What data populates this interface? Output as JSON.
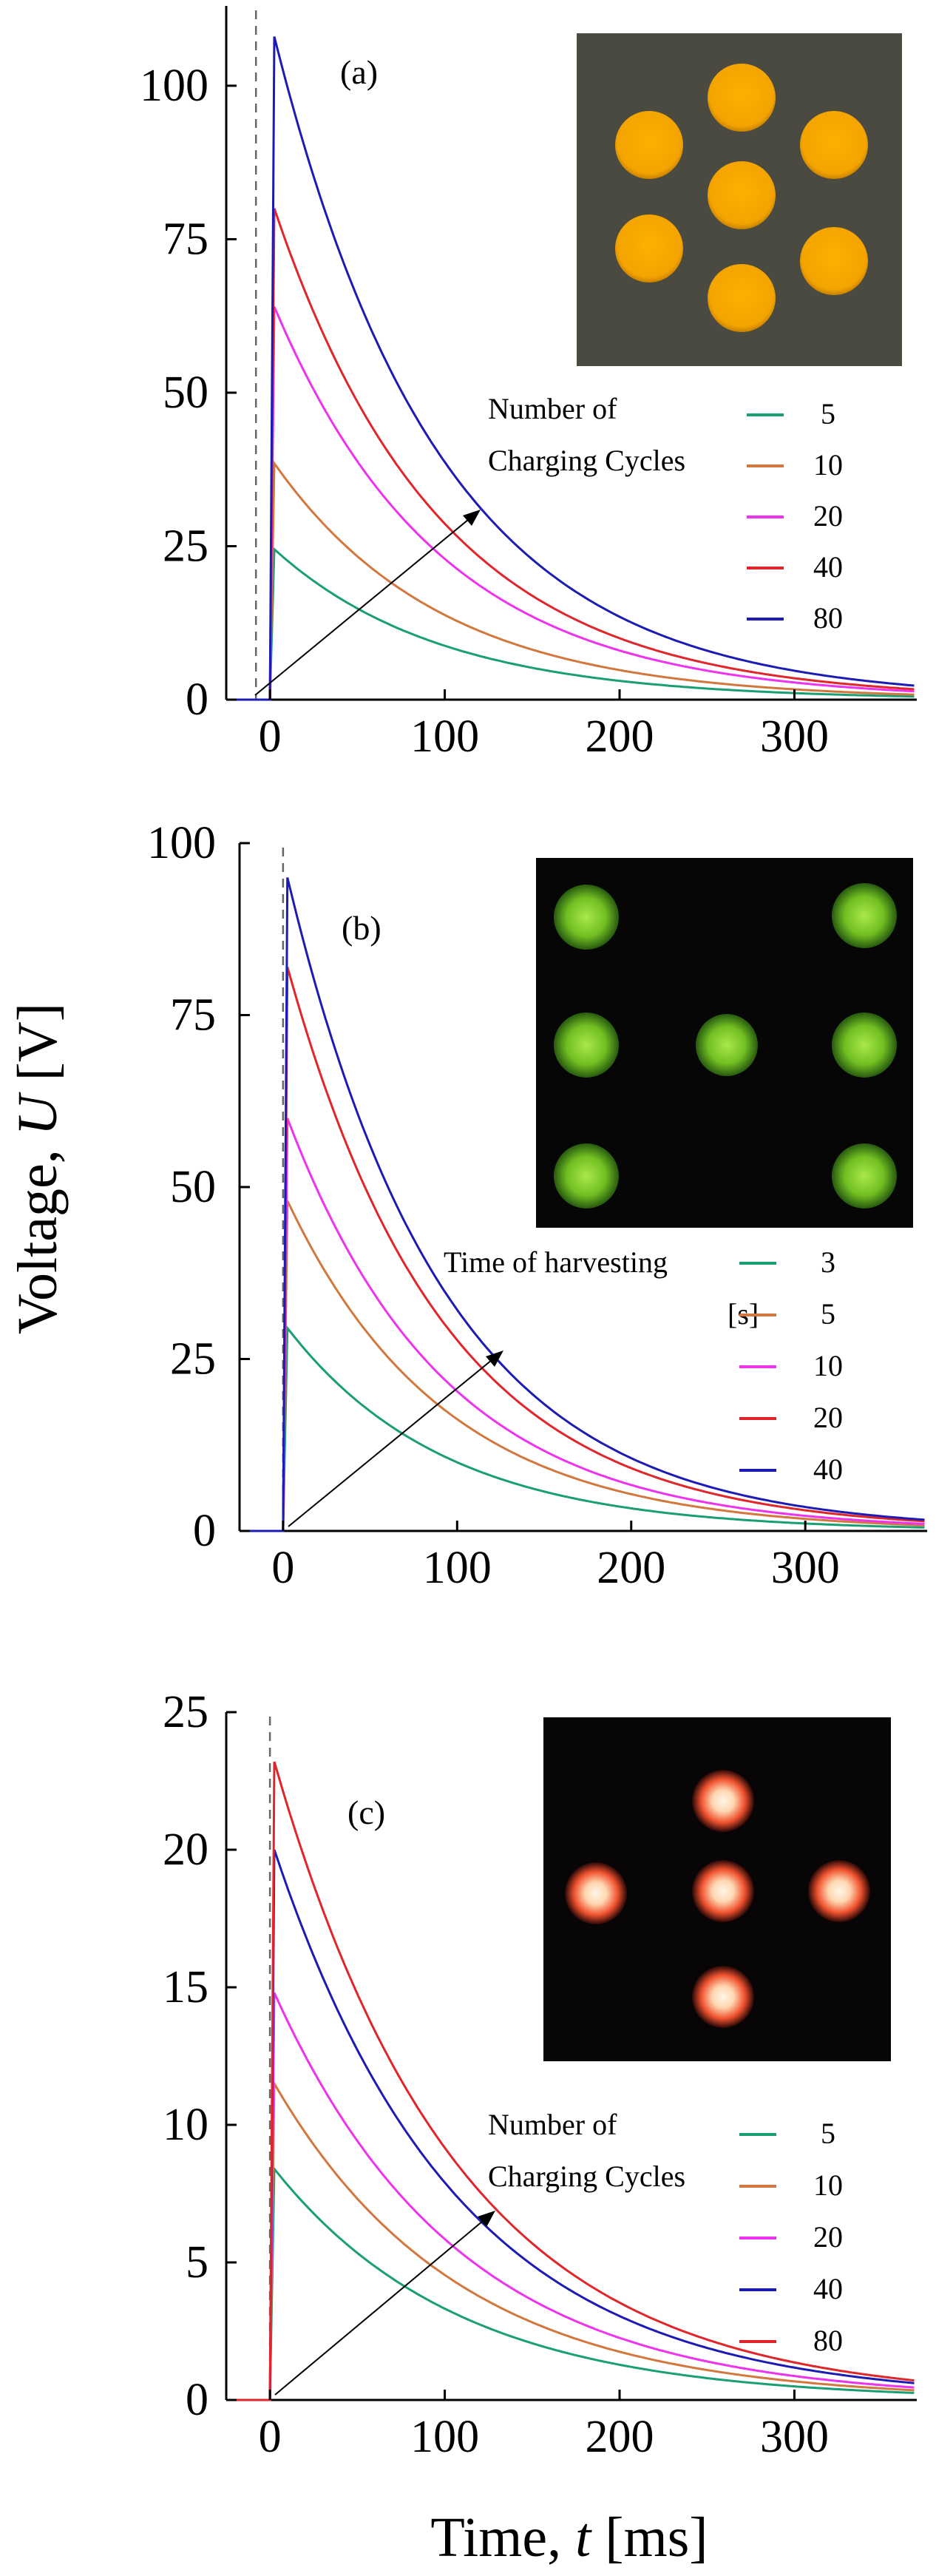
{
  "figure": {
    "ylabel_main": "Voltage, ",
    "ylabel_var": "U",
    "ylabel_unit": " [V]",
    "xlabel_main": "Time, ",
    "xlabel_var": "t",
    "xlabel_unit": " [ms]"
  },
  "chart_data": [
    {
      "type": "line",
      "panel_label": "(a)",
      "xlabel": "Time, t [ms]",
      "ylabel": "Voltage, U [V]",
      "xlim": [
        -25,
        370
      ],
      "ylim": [
        0,
        113
      ],
      "xticks": [
        0,
        100,
        200,
        300
      ],
      "yticks": [
        0,
        25,
        50,
        75,
        100
      ],
      "legend_title": [
        "Number of",
        "Charging Cycles"
      ],
      "dashed_line_x": -8,
      "pulse_start": 0,
      "decay_tau_ms": 95,
      "series": [
        {
          "name": "5",
          "color": "#1a9e74",
          "peak": 24.5
        },
        {
          "name": "10",
          "color": "#d2773e",
          "peak": 38.5
        },
        {
          "name": "20",
          "color": "#ee33ee",
          "peak": 64
        },
        {
          "name": "40",
          "color": "#e0262b",
          "peak": 80
        },
        {
          "name": "80",
          "color": "#1c1cb4",
          "peak": 108
        }
      ],
      "inset": {
        "type": "yellow-led-array",
        "background": "#4a4a40",
        "dot_color": "#f3a400"
      }
    },
    {
      "type": "line",
      "panel_label": "(b)",
      "xlabel": "Time, t [ms]",
      "ylabel": "Voltage, U [V]",
      "xlim": [
        -25,
        370
      ],
      "ylim": [
        0,
        100
      ],
      "xticks": [
        0,
        100,
        200,
        300
      ],
      "yticks": [
        0,
        25,
        50,
        75,
        100
      ],
      "legend_title": [
        "Time of harvesting",
        "[s]"
      ],
      "dashed_line_x": 0,
      "pulse_start": 0,
      "decay_tau_ms": 90,
      "series": [
        {
          "name": "3",
          "color": "#1a9e74",
          "peak": 29.5
        },
        {
          "name": "5",
          "color": "#d2773e",
          "peak": 48
        },
        {
          "name": "10",
          "color": "#ee33ee",
          "peak": 60
        },
        {
          "name": "20",
          "color": "#e0262b",
          "peak": 82
        },
        {
          "name": "40",
          "color": "#1c1cb4",
          "peak": 95
        }
      ],
      "inset": {
        "type": "green-led-array",
        "background": "#050605",
        "dot_color": "#7ecb28"
      }
    },
    {
      "type": "line",
      "panel_label": "(c)",
      "xlabel": "Time, t [ms]",
      "ylabel": "Voltage, U [V]",
      "xlim": [
        -25,
        370
      ],
      "ylim": [
        0,
        25
      ],
      "xticks": [
        0,
        100,
        200,
        300
      ],
      "yticks": [
        0,
        5,
        10,
        15,
        20,
        25
      ],
      "legend_title": [
        "Number of",
        "Charging Cycles"
      ],
      "dashed_line_x": 0,
      "pulse_start": 0,
      "decay_tau_ms": 105,
      "series": [
        {
          "name": "5",
          "color": "#1a9e74",
          "peak": 8.4
        },
        {
          "name": "10",
          "color": "#d2773e",
          "peak": 11.5
        },
        {
          "name": "20",
          "color": "#ee33ee",
          "peak": 14.8
        },
        {
          "name": "40",
          "color": "#1c1cb4",
          "peak": 20
        },
        {
          "name": "80",
          "color": "#e0262b",
          "peak": 23.2
        }
      ],
      "inset": {
        "type": "red-led-array",
        "background": "#070505",
        "dot_color": "#f04a30"
      }
    }
  ]
}
